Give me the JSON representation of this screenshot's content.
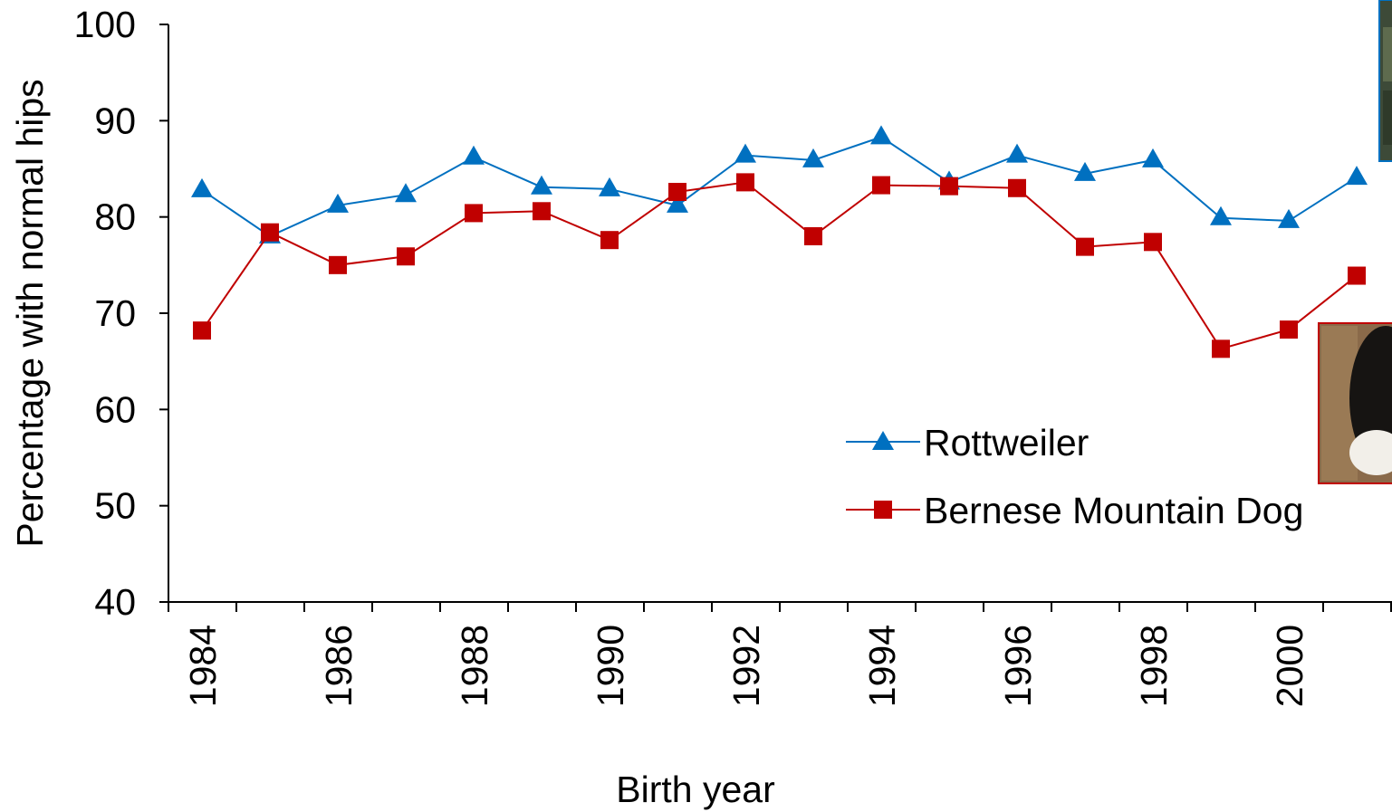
{
  "chart_data": {
    "type": "line",
    "title": "",
    "xlabel": "Birth year",
    "ylabel": "Percentage with normal hips",
    "ylim": [
      40,
      100
    ],
    "yticks": [
      40,
      50,
      60,
      70,
      80,
      90,
      100
    ],
    "x": [
      1984,
      1985,
      1986,
      1987,
      1988,
      1989,
      1990,
      1991,
      1992,
      1993,
      1994,
      1995,
      1996,
      1997,
      1998,
      1999,
      2000,
      2001
    ],
    "xtick_labels": [
      "1984",
      "1986",
      "1988",
      "1990",
      "1992",
      "1994",
      "1996",
      "1998",
      "2000"
    ],
    "grid": false,
    "legend_position": "lower-right",
    "series": [
      {
        "name": "Rottweiler",
        "color": "#0070C0",
        "marker": "triangle",
        "values": [
          82.8,
          78.0,
          81.2,
          82.3,
          86.2,
          83.1,
          82.9,
          81.2,
          86.4,
          85.9,
          88.3,
          83.6,
          86.4,
          84.5,
          85.9,
          79.9,
          79.6,
          84.1
        ]
      },
      {
        "name": "Bernese Mountain Dog",
        "color": "#C00000",
        "marker": "square",
        "values": [
          68.2,
          78.4,
          75.0,
          75.9,
          80.4,
          80.6,
          77.6,
          82.6,
          83.6,
          78.0,
          83.3,
          83.2,
          83.0,
          76.9,
          77.4,
          66.3,
          68.3,
          73.9
        ]
      }
    ]
  }
}
